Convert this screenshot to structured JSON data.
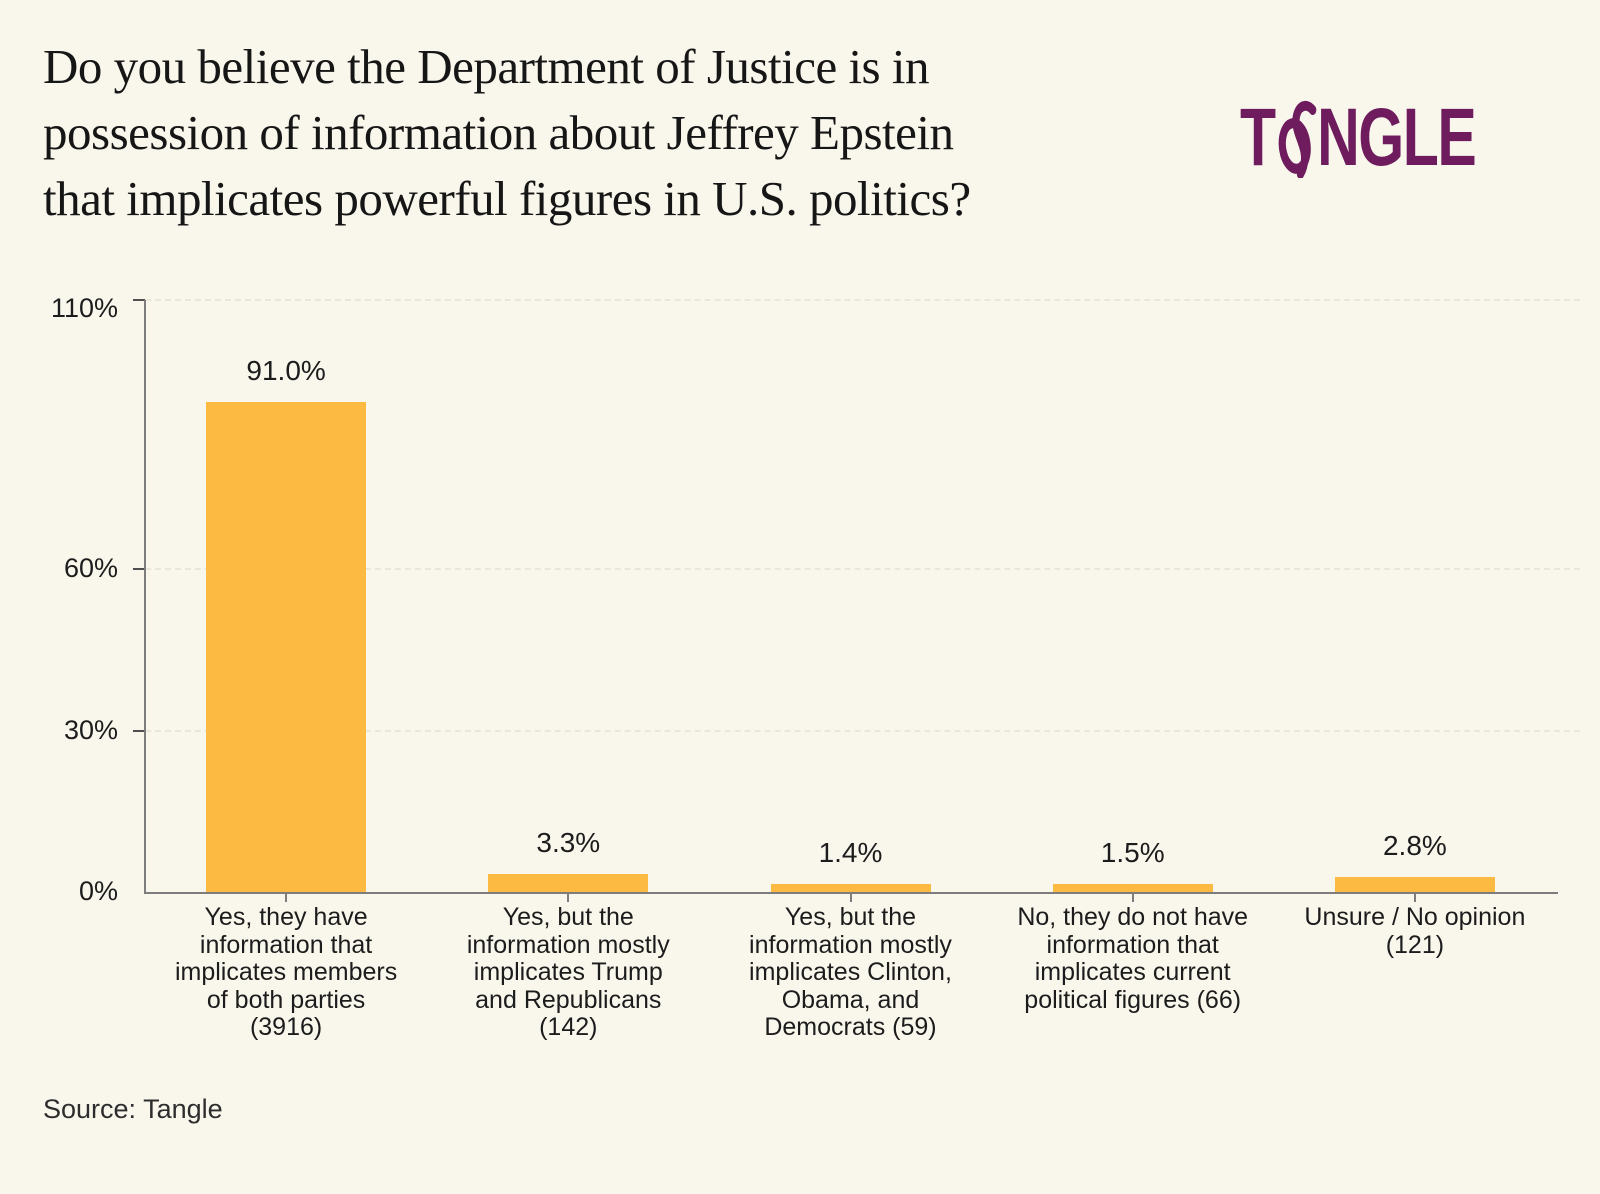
{
  "header": {
    "title": "Do you believe the Department of Justice is in\npossession of information about Jeffrey Epstein\nthat implicates powerful figures in U.S. politics?",
    "logo": {
      "t": "T",
      "ngle": "NGLE",
      "color": "#6E1C5E"
    }
  },
  "chart_data": {
    "type": "bar",
    "title": "Do you believe the Department of Justice is in possession of information about Jeffrey Epstein that implicates powerful figures in U.S. politics?",
    "categories": [
      "Yes, they have information that implicates members of both parties (3916)",
      "Yes, but the information mostly implicates Trump and Republicans (142)",
      "Yes, but the information mostly implicates Clinton, Obama, and Democrats (59)",
      "No, they do not have information that implicates current political figures (66)",
      "Unsure / No opinion (121)"
    ],
    "category_label_lines": [
      "Yes, they have\ninformation that\nimplicates members\nof both parties\n(3916)",
      "Yes, but the\ninformation mostly\nimplicates Trump\nand Republicans\n(142)",
      "Yes, but the\ninformation mostly\nimplicates Clinton,\nObama, and\nDemocrats (59)",
      "No, they do not have\ninformation that\nimplicates current\npolitical figures (66)",
      "Unsure / No opinion\n(121)"
    ],
    "counts": [
      3916,
      142,
      59,
      66,
      121
    ],
    "values": [
      91.0,
      3.3,
      1.4,
      1.5,
      2.8
    ],
    "value_labels": [
      "91.0%",
      "3.3%",
      "1.4%",
      "1.5%",
      "2.8%"
    ],
    "xlabel": "",
    "ylabel": "",
    "ylim": [
      0,
      110
    ],
    "y_ticks": [
      {
        "label": "0%",
        "value": 0
      },
      {
        "label": "30%",
        "value": 30
      },
      {
        "label": "60%",
        "value": 60
      },
      {
        "label": "110%",
        "value": 110
      }
    ],
    "grid": "horizontal-dashed",
    "legend": "none",
    "bar_color": "#FDBA42"
  },
  "footer": {
    "source": "Source: Tangle"
  }
}
